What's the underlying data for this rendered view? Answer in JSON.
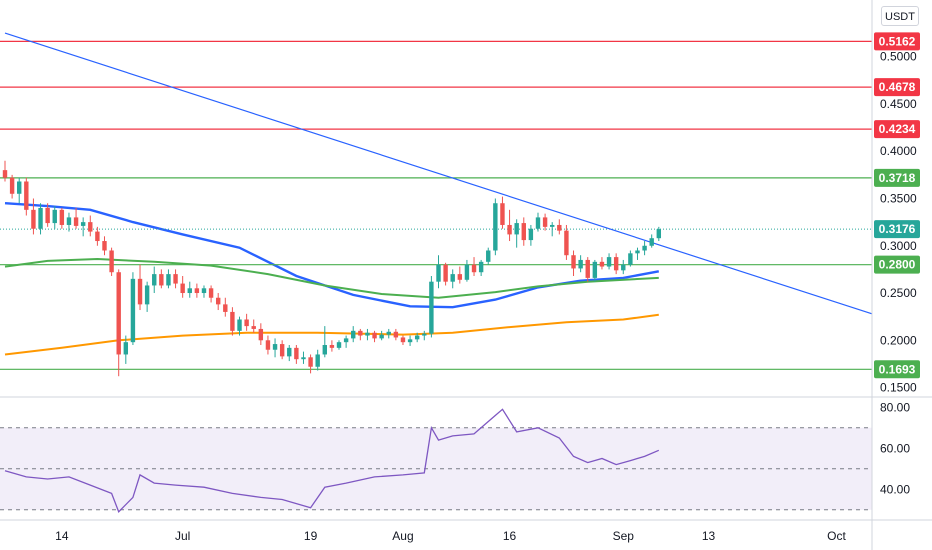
{
  "currency": "USDT",
  "colors": {
    "up": "#26a69a",
    "down": "#ef5350",
    "resistance": "#f23645",
    "support": "#4caf50",
    "trendline": "#2962ff",
    "ma_fast": "#2962ff",
    "ma_mid": "#4caf50",
    "ma_slow": "#ff9800",
    "rsi": "#7e57c2",
    "current": "#26a69a"
  },
  "chart_data": [
    {
      "type": "candlestick",
      "name": "price-panel",
      "x_range": [
        "2021-06-06",
        "2021-10-06"
      ],
      "ylim": [
        0.14,
        0.56
      ],
      "y_ticks": [
        "0.1500",
        "0.2000",
        "0.2500",
        "0.3000",
        "0.3500",
        "0.4000",
        "0.4500",
        "0.5000"
      ],
      "x_ticks": [
        {
          "date": "2021-06-14",
          "label": "14"
        },
        {
          "date": "2021-07-01",
          "label": "Jul"
        },
        {
          "date": "2021-07-19",
          "label": "19"
        },
        {
          "date": "2021-08-01",
          "label": "Aug"
        },
        {
          "date": "2021-08-16",
          "label": "16"
        },
        {
          "date": "2021-09-01",
          "label": "Sep"
        },
        {
          "date": "2021-09-13",
          "label": "13"
        },
        {
          "date": "2021-10-01",
          "label": "Oct"
        }
      ],
      "resistance_levels": [
        {
          "value": 0.5162,
          "label": "0.5162"
        },
        {
          "value": 0.4678,
          "label": "0.4678"
        },
        {
          "value": 0.4234,
          "label": "0.4234"
        }
      ],
      "support_levels": [
        {
          "value": 0.3718,
          "label": "0.3718"
        },
        {
          "value": 0.28,
          "label": "0.2800"
        },
        {
          "value": 0.1693,
          "label": "0.1693"
        }
      ],
      "current_price": {
        "value": 0.3176,
        "label": "0.3176"
      },
      "trendline": [
        {
          "date": "2021-06-06",
          "value": 0.525
        },
        {
          "date": "2021-10-06",
          "value": 0.228
        }
      ],
      "moving_averages": [
        {
          "color": "ma_fast",
          "points": [
            [
              "2021-06-06",
              0.345
            ],
            [
              "2021-06-12",
              0.342
            ],
            [
              "2021-06-18",
              0.338
            ],
            [
              "2021-06-24",
              0.325
            ],
            [
              "2021-07-01",
              0.312
            ],
            [
              "2021-07-09",
              0.298
            ],
            [
              "2021-07-17",
              0.268
            ],
            [
              "2021-07-25",
              0.248
            ],
            [
              "2021-08-02",
              0.236
            ],
            [
              "2021-08-08",
              0.235
            ],
            [
              "2021-08-14",
              0.243
            ],
            [
              "2021-08-20",
              0.256
            ],
            [
              "2021-08-26",
              0.263
            ],
            [
              "2021-09-01",
              0.266
            ],
            [
              "2021-09-06",
              0.273
            ]
          ]
        },
        {
          "color": "ma_mid",
          "points": [
            [
              "2021-06-06",
              0.278
            ],
            [
              "2021-06-12",
              0.284
            ],
            [
              "2021-06-19",
              0.286
            ],
            [
              "2021-06-27",
              0.283
            ],
            [
              "2021-07-05",
              0.279
            ],
            [
              "2021-07-13",
              0.27
            ],
            [
              "2021-07-21",
              0.258
            ],
            [
              "2021-07-29",
              0.249
            ],
            [
              "2021-08-06",
              0.245
            ],
            [
              "2021-08-14",
              0.251
            ],
            [
              "2021-08-20",
              0.257
            ],
            [
              "2021-08-27",
              0.262
            ],
            [
              "2021-09-06",
              0.266
            ]
          ]
        },
        {
          "color": "ma_slow",
          "points": [
            [
              "2021-06-06",
              0.185
            ],
            [
              "2021-06-14",
              0.192
            ],
            [
              "2021-06-22",
              0.2
            ],
            [
              "2021-07-01",
              0.205
            ],
            [
              "2021-07-10",
              0.208
            ],
            [
              "2021-07-20",
              0.208
            ],
            [
              "2021-08-01",
              0.206
            ],
            [
              "2021-08-08",
              0.208
            ],
            [
              "2021-08-16",
              0.214
            ],
            [
              "2021-08-24",
              0.219
            ],
            [
              "2021-09-01",
              0.222
            ],
            [
              "2021-09-06",
              0.227
            ]
          ]
        }
      ],
      "candles": [
        [
          "2021-06-06",
          0.38,
          0.39,
          0.368,
          0.372
        ],
        [
          "2021-06-07",
          0.372,
          0.375,
          0.35,
          0.355
        ],
        [
          "2021-06-08",
          0.355,
          0.372,
          0.345,
          0.368
        ],
        [
          "2021-06-09",
          0.368,
          0.372,
          0.332,
          0.338
        ],
        [
          "2021-06-10",
          0.338,
          0.35,
          0.312,
          0.318
        ],
        [
          "2021-06-11",
          0.318,
          0.345,
          0.312,
          0.34
        ],
        [
          "2021-06-12",
          0.34,
          0.345,
          0.32,
          0.324
        ],
        [
          "2021-06-13",
          0.324,
          0.342,
          0.318,
          0.338
        ],
        [
          "2021-06-14",
          0.338,
          0.34,
          0.318,
          0.322
        ],
        [
          "2021-06-15",
          0.322,
          0.335,
          0.315,
          0.33
        ],
        [
          "2021-06-16",
          0.33,
          0.34,
          0.318,
          0.321
        ],
        [
          "2021-06-17",
          0.321,
          0.33,
          0.31,
          0.325
        ],
        [
          "2021-06-18",
          0.325,
          0.332,
          0.31,
          0.315
        ],
        [
          "2021-06-19",
          0.315,
          0.32,
          0.3,
          0.305
        ],
        [
          "2021-06-20",
          0.305,
          0.31,
          0.29,
          0.295
        ],
        [
          "2021-06-21",
          0.295,
          0.298,
          0.268,
          0.272
        ],
        [
          "2021-06-22",
          0.272,
          0.275,
          0.162,
          0.185
        ],
        [
          "2021-06-23",
          0.185,
          0.205,
          0.175,
          0.198
        ],
        [
          "2021-06-24",
          0.198,
          0.272,
          0.195,
          0.265
        ],
        [
          "2021-06-25",
          0.265,
          0.28,
          0.232,
          0.238
        ],
        [
          "2021-06-26",
          0.238,
          0.262,
          0.23,
          0.258
        ],
        [
          "2021-06-27",
          0.258,
          0.278,
          0.25,
          0.27
        ],
        [
          "2021-06-28",
          0.27,
          0.275,
          0.255,
          0.258
        ],
        [
          "2021-06-29",
          0.258,
          0.275,
          0.255,
          0.27
        ],
        [
          "2021-06-30",
          0.27,
          0.275,
          0.255,
          0.26
        ],
        [
          "2021-07-01",
          0.26,
          0.268,
          0.245,
          0.25
        ],
        [
          "2021-07-02",
          0.25,
          0.262,
          0.245,
          0.255
        ],
        [
          "2021-07-03",
          0.255,
          0.26,
          0.245,
          0.25
        ],
        [
          "2021-07-04",
          0.25,
          0.258,
          0.245,
          0.255
        ],
        [
          "2021-07-05",
          0.255,
          0.258,
          0.24,
          0.245
        ],
        [
          "2021-07-06",
          0.245,
          0.25,
          0.232,
          0.238
        ],
        [
          "2021-07-07",
          0.238,
          0.245,
          0.225,
          0.23
        ],
        [
          "2021-07-08",
          0.23,
          0.235,
          0.205,
          0.21
        ],
        [
          "2021-07-09",
          0.21,
          0.225,
          0.205,
          0.222
        ],
        [
          "2021-07-10",
          0.222,
          0.228,
          0.21,
          0.215
        ],
        [
          "2021-07-11",
          0.215,
          0.222,
          0.208,
          0.212
        ],
        [
          "2021-07-12",
          0.212,
          0.218,
          0.195,
          0.2
        ],
        [
          "2021-07-13",
          0.2,
          0.205,
          0.185,
          0.19
        ],
        [
          "2021-07-14",
          0.19,
          0.202,
          0.182,
          0.196
        ],
        [
          "2021-07-15",
          0.196,
          0.2,
          0.18,
          0.183
        ],
        [
          "2021-07-16",
          0.183,
          0.195,
          0.178,
          0.192
        ],
        [
          "2021-07-17",
          0.192,
          0.195,
          0.175,
          0.18
        ],
        [
          "2021-07-18",
          0.18,
          0.188,
          0.175,
          0.182
        ],
        [
          "2021-07-19",
          0.182,
          0.185,
          0.165,
          0.172
        ],
        [
          "2021-07-20",
          0.172,
          0.19,
          0.168,
          0.185
        ],
        [
          "2021-07-21",
          0.185,
          0.215,
          0.182,
          0.195
        ],
        [
          "2021-07-22",
          0.195,
          0.2,
          0.188,
          0.192
        ],
        [
          "2021-07-23",
          0.192,
          0.2,
          0.19,
          0.198
        ],
        [
          "2021-07-24",
          0.198,
          0.205,
          0.192,
          0.202
        ],
        [
          "2021-07-25",
          0.202,
          0.215,
          0.198,
          0.21
        ],
        [
          "2021-07-26",
          0.21,
          0.212,
          0.2,
          0.205
        ],
        [
          "2021-07-27",
          0.205,
          0.212,
          0.2,
          0.208
        ],
        [
          "2021-07-28",
          0.208,
          0.21,
          0.198,
          0.202
        ],
        [
          "2021-07-29",
          0.202,
          0.21,
          0.2,
          0.206
        ],
        [
          "2021-07-30",
          0.206,
          0.212,
          0.202,
          0.209
        ],
        [
          "2021-07-31",
          0.209,
          0.212,
          0.2,
          0.203
        ],
        [
          "2021-08-01",
          0.203,
          0.205,
          0.195,
          0.198
        ],
        [
          "2021-08-02",
          0.198,
          0.205,
          0.194,
          0.201
        ],
        [
          "2021-08-03",
          0.201,
          0.208,
          0.198,
          0.205
        ],
        [
          "2021-08-04",
          0.205,
          0.21,
          0.2,
          0.207
        ],
        [
          "2021-08-05",
          0.207,
          0.268,
          0.203,
          0.262
        ],
        [
          "2021-08-06",
          0.262,
          0.29,
          0.255,
          0.28
        ],
        [
          "2021-08-07",
          0.28,
          0.282,
          0.258,
          0.262
        ],
        [
          "2021-08-08",
          0.262,
          0.275,
          0.255,
          0.27
        ],
        [
          "2021-08-09",
          0.27,
          0.278,
          0.26,
          0.264
        ],
        [
          "2021-08-10",
          0.264,
          0.285,
          0.262,
          0.28
        ],
        [
          "2021-08-11",
          0.28,
          0.288,
          0.268,
          0.272
        ],
        [
          "2021-08-12",
          0.272,
          0.285,
          0.268,
          0.283
        ],
        [
          "2021-08-13",
          0.283,
          0.298,
          0.28,
          0.295
        ],
        [
          "2021-08-14",
          0.295,
          0.35,
          0.29,
          0.345
        ],
        [
          "2021-08-15",
          0.345,
          0.352,
          0.318,
          0.322
        ],
        [
          "2021-08-16",
          0.322,
          0.338,
          0.305,
          0.312
        ],
        [
          "2021-08-17",
          0.312,
          0.328,
          0.298,
          0.324
        ],
        [
          "2021-08-18",
          0.324,
          0.33,
          0.3,
          0.306
        ],
        [
          "2021-08-19",
          0.306,
          0.322,
          0.3,
          0.318
        ],
        [
          "2021-08-20",
          0.318,
          0.335,
          0.315,
          0.33
        ],
        [
          "2021-08-21",
          0.33,
          0.334,
          0.316,
          0.32
        ],
        [
          "2021-08-22",
          0.32,
          0.325,
          0.31,
          0.322
        ],
        [
          "2021-08-23",
          0.322,
          0.328,
          0.312,
          0.316
        ],
        [
          "2021-08-24",
          0.316,
          0.322,
          0.285,
          0.29
        ],
        [
          "2021-08-25",
          0.29,
          0.295,
          0.268,
          0.276
        ],
        [
          "2021-08-26",
          0.276,
          0.29,
          0.272,
          0.285
        ],
        [
          "2021-08-27",
          0.285,
          0.288,
          0.262,
          0.266
        ],
        [
          "2021-08-28",
          0.266,
          0.285,
          0.262,
          0.283
        ],
        [
          "2021-08-29",
          0.283,
          0.288,
          0.275,
          0.278
        ],
        [
          "2021-08-30",
          0.278,
          0.292,
          0.275,
          0.288
        ],
        [
          "2021-08-31",
          0.288,
          0.292,
          0.27,
          0.274
        ],
        [
          "2021-09-01",
          0.274,
          0.285,
          0.27,
          0.28
        ],
        [
          "2021-09-02",
          0.28,
          0.295,
          0.278,
          0.292
        ],
        [
          "2021-09-03",
          0.292,
          0.298,
          0.285,
          0.295
        ],
        [
          "2021-09-04",
          0.295,
          0.305,
          0.29,
          0.3
        ],
        [
          "2021-09-05",
          0.3,
          0.312,
          0.298,
          0.308
        ],
        [
          "2021-09-06",
          0.308,
          0.32,
          0.305,
          0.3176
        ]
      ]
    },
    {
      "type": "line",
      "name": "rsi-panel",
      "ylim": [
        25,
        85
      ],
      "y_ticks": [
        "40.00",
        "60.00",
        "80.00"
      ],
      "bands": [
        30,
        50,
        70
      ],
      "points": [
        [
          "2021-06-06",
          49
        ],
        [
          "2021-06-09",
          46
        ],
        [
          "2021-06-12",
          45
        ],
        [
          "2021-06-15",
          46
        ],
        [
          "2021-06-18",
          42
        ],
        [
          "2021-06-21",
          38
        ],
        [
          "2021-06-22",
          29
        ],
        [
          "2021-06-24",
          36
        ],
        [
          "2021-06-25",
          47
        ],
        [
          "2021-06-27",
          43
        ],
        [
          "2021-06-30",
          42
        ],
        [
          "2021-07-04",
          41
        ],
        [
          "2021-07-08",
          38
        ],
        [
          "2021-07-12",
          36
        ],
        [
          "2021-07-15",
          35
        ],
        [
          "2021-07-19",
          31
        ],
        [
          "2021-07-21",
          41
        ],
        [
          "2021-07-24",
          43
        ],
        [
          "2021-07-28",
          46
        ],
        [
          "2021-08-01",
          47
        ],
        [
          "2021-08-04",
          48
        ],
        [
          "2021-08-05",
          70
        ],
        [
          "2021-08-06",
          64
        ],
        [
          "2021-08-08",
          66
        ],
        [
          "2021-08-11",
          67
        ],
        [
          "2021-08-14",
          76
        ],
        [
          "2021-08-15",
          79
        ],
        [
          "2021-08-17",
          68
        ],
        [
          "2021-08-20",
          70
        ],
        [
          "2021-08-23",
          65
        ],
        [
          "2021-08-25",
          56
        ],
        [
          "2021-08-27",
          53
        ],
        [
          "2021-08-29",
          55
        ],
        [
          "2021-08-31",
          52
        ],
        [
          "2021-09-02",
          54
        ],
        [
          "2021-09-04",
          56
        ],
        [
          "2021-09-06",
          59
        ]
      ]
    }
  ]
}
